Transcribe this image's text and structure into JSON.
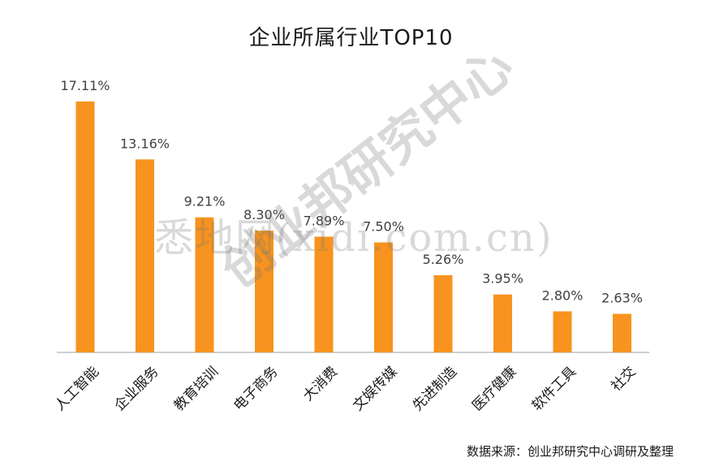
{
  "watermarks": {
    "site": "悉地网(xidi.com.cn)",
    "center": "创业邦研究中心"
  },
  "source": "数据来源：创业邦研究中心调研及整理",
  "chart_data": {
    "type": "bar",
    "title": "企业所属行业TOP10",
    "xlabel": "",
    "ylabel": "",
    "categories": [
      "人工智能",
      "企业服务",
      "教育培训",
      "电子商务",
      "大消费",
      "文娱传媒",
      "先进制造",
      "医疗健康",
      "软件工具",
      "社交"
    ],
    "values": [
      17.11,
      13.16,
      9.21,
      8.3,
      7.89,
      7.5,
      5.26,
      3.95,
      2.8,
      2.63
    ],
    "value_labels": [
      "17.11%",
      "13.16%",
      "9.21%",
      "8.30%",
      "7.89%",
      "7.50%",
      "5.26%",
      "3.95%",
      "2.80%",
      "2.63%"
    ],
    "ylim": [
      0,
      17.11
    ],
    "grid": false,
    "bar_color": "#F7931E",
    "axis_color": "#BFBFBF"
  }
}
